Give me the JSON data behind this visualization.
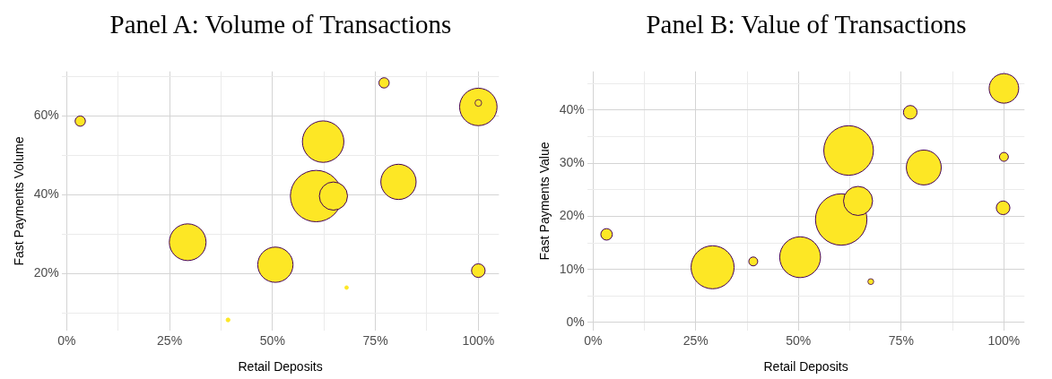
{
  "chart_data": [
    {
      "type": "bubble",
      "title": "Panel A: Volume of Transactions",
      "xlabel": "Retail Deposits",
      "ylabel": "Fast Payments Volume",
      "grid": true,
      "x": [
        3.3,
        77.1,
        100,
        100,
        62.3,
        60.6,
        64.8,
        80.6,
        29.4,
        50.7,
        100,
        68.0,
        39.2
      ],
      "series": [
        {
          "color": "#fde725",
          "values": [
            58.7,
            68.4,
            62.3,
            63.3,
            53.5,
            39.7,
            39.7,
            43.3,
            28.0,
            22.3,
            20.8,
            16.5,
            8.3
          ],
          "sizes": [
            0.04,
            0.04,
            0.53,
            0.017,
            0.65,
            1,
            0.3,
            0.47,
            0.51,
            0.47,
            0.07,
            0.005,
            0.006
          ]
        }
      ],
      "xlim": [
        -1.2,
        105
      ],
      "ylim": [
        5.5,
        71.3
      ],
      "xticks": [
        {
          "value": 0,
          "label": "0%"
        },
        {
          "value": 12.5,
          "label": null
        },
        {
          "value": 25,
          "label": "25%"
        },
        {
          "value": 37.5,
          "label": null
        },
        {
          "value": 50,
          "label": "50%"
        },
        {
          "value": 62.5,
          "label": null
        },
        {
          "value": 75,
          "label": "75%"
        },
        {
          "value": 87.5,
          "label": null
        },
        {
          "value": 100,
          "label": "100%"
        }
      ],
      "yticks": [
        {
          "value": 10,
          "label": null
        },
        {
          "value": 20,
          "label": "20%"
        },
        {
          "value": 30,
          "label": null
        },
        {
          "value": 40,
          "label": "40%"
        },
        {
          "value": 50,
          "label": null
        },
        {
          "value": 60,
          "label": "60%"
        },
        {
          "value": 70,
          "label": null
        }
      ]
    },
    {
      "type": "bubble",
      "title": "Panel B: Value of Transactions",
      "xlabel": "Retail Deposits",
      "ylabel": "Fast Payments Value",
      "grid": true,
      "x": [
        3.3,
        29.1,
        39.0,
        50.4,
        60.4,
        64.5,
        67.6,
        62.2,
        77.2,
        80.5,
        100,
        100,
        99.8
      ],
      "series": [
        {
          "color": "#fde725",
          "values": [
            16.6,
            10.4,
            11.5,
            12.3,
            19.4,
            22.9,
            7.7,
            32.4,
            39.6,
            29.2,
            44.1,
            31.2,
            21.6
          ],
          "sizes": [
            0.05,
            0.7,
            0.03,
            0.63,
            1,
            0.32,
            0.013,
            0.93,
            0.07,
            0.46,
            0.33,
            0.03,
            0.07
          ]
        }
      ],
      "xlim": [
        -1.4,
        105
      ],
      "ylim": [
        -1.6,
        47.3
      ],
      "xticks": [
        {
          "value": 0,
          "label": "0%"
        },
        {
          "value": 12.5,
          "label": null
        },
        {
          "value": 25,
          "label": "25%"
        },
        {
          "value": 37.5,
          "label": null
        },
        {
          "value": 50,
          "label": "50%"
        },
        {
          "value": 62.5,
          "label": null
        },
        {
          "value": 75,
          "label": "75%"
        },
        {
          "value": 87.5,
          "label": null
        },
        {
          "value": 100,
          "label": "100%"
        }
      ],
      "yticks": [
        {
          "value": 0,
          "label": "0%"
        },
        {
          "value": 5,
          "label": null
        },
        {
          "value": 10,
          "label": "10%"
        },
        {
          "value": 15,
          "label": null
        },
        {
          "value": 20,
          "label": "20%"
        },
        {
          "value": 25,
          "label": null
        },
        {
          "value": 30,
          "label": "30%"
        },
        {
          "value": 35,
          "label": null
        },
        {
          "value": 40,
          "label": "40%"
        },
        {
          "value": 45,
          "label": null
        }
      ]
    }
  ]
}
